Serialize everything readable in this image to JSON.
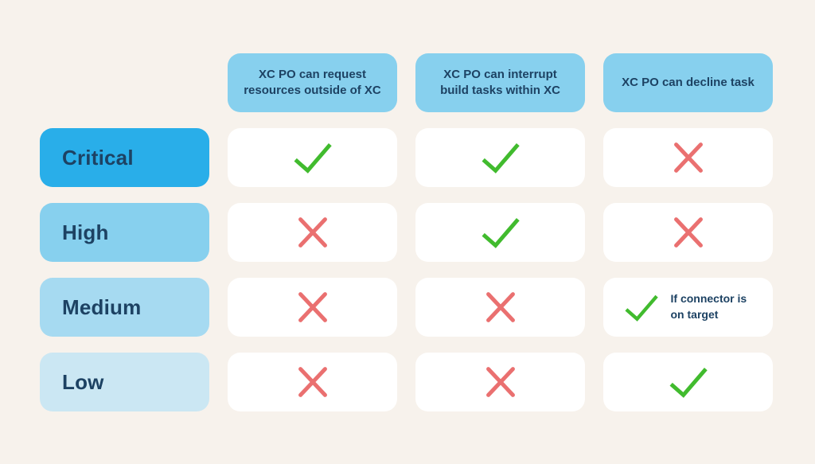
{
  "colors": {
    "background": "#f7f2ec",
    "card": "#ffffff",
    "header_chip": "#87d0ee",
    "text_navy": "#1d4263",
    "check_green": "#41bb2e",
    "cross_red": "#ea7070",
    "row_critical": "#29aee9",
    "row_high": "#87d0ee",
    "row_medium": "#a6daf1",
    "row_low": "#cbe7f3"
  },
  "matrix": {
    "columns": [
      "XC PO can request resources outside of XC",
      "XC PO can interrupt build tasks within XC",
      "XC PO can decline task"
    ],
    "rows": [
      {
        "id": "critical",
        "label": "Critical",
        "cells": [
          {
            "mark": "check"
          },
          {
            "mark": "check"
          },
          {
            "mark": "cross"
          }
        ]
      },
      {
        "id": "high",
        "label": "High",
        "cells": [
          {
            "mark": "cross"
          },
          {
            "mark": "check"
          },
          {
            "mark": "cross"
          }
        ]
      },
      {
        "id": "medium",
        "label": "Medium",
        "cells": [
          {
            "mark": "cross"
          },
          {
            "mark": "cross"
          },
          {
            "mark": "check",
            "note": "If connector is on target"
          }
        ]
      },
      {
        "id": "low",
        "label": "Low",
        "cells": [
          {
            "mark": "cross"
          },
          {
            "mark": "cross"
          },
          {
            "mark": "check"
          }
        ]
      }
    ]
  }
}
